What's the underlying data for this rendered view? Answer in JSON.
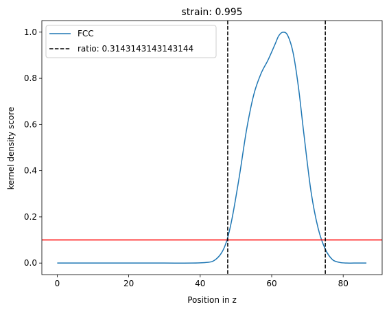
{
  "chart_data": {
    "type": "line",
    "title": "strain: 0.995",
    "xlabel": "Position in z",
    "ylabel": "kernel density score",
    "xlim": [
      -4.3,
      90.9
    ],
    "ylim": [
      -0.05,
      1.05
    ],
    "xticks": [
      0,
      20,
      40,
      60,
      80
    ],
    "yticks": [
      0.0,
      0.2,
      0.4,
      0.6,
      0.8,
      1.0
    ],
    "xtick_labels": [
      "0",
      "20",
      "40",
      "60",
      "80"
    ],
    "ytick_labels": [
      "0.0",
      "0.2",
      "0.4",
      "0.6",
      "0.8",
      "1.0"
    ],
    "grid": false,
    "legend_position": "top-left",
    "series": [
      {
        "name": "FCC",
        "color": "#1f77b4",
        "x": [
          0,
          10,
          20,
          30,
          38,
          42,
          44,
          46,
          47.5,
          49,
          51,
          53,
          55,
          57,
          59,
          61,
          62,
          63.2,
          64.5,
          66,
          67.5,
          69,
          71,
          73,
          75,
          77,
          79,
          81,
          83,
          86.5
        ],
        "y": [
          0.0,
          0.0,
          0.0,
          0.0,
          0.0,
          0.003,
          0.012,
          0.045,
          0.1,
          0.2,
          0.38,
          0.58,
          0.73,
          0.82,
          0.88,
          0.95,
          0.985,
          1.0,
          0.985,
          0.91,
          0.76,
          0.56,
          0.31,
          0.15,
          0.06,
          0.015,
          0.003,
          0.0,
          0.0,
          0.0
        ]
      }
    ],
    "vlines": [
      {
        "x": 47.7,
        "color": "#000000",
        "style": "dashed",
        "label": "ratio: 0.3143143143143144"
      },
      {
        "x": 75.0,
        "color": "#000000",
        "style": "dashed",
        "label": ""
      }
    ],
    "hlines": [
      {
        "y": 0.1,
        "color": "#ff0000",
        "style": "solid"
      }
    ],
    "legend": [
      {
        "label": "FCC",
        "color": "#1f77b4",
        "style": "solid"
      },
      {
        "label": "ratio: 0.3143143143143144",
        "color": "#000000",
        "style": "dashed"
      }
    ]
  }
}
